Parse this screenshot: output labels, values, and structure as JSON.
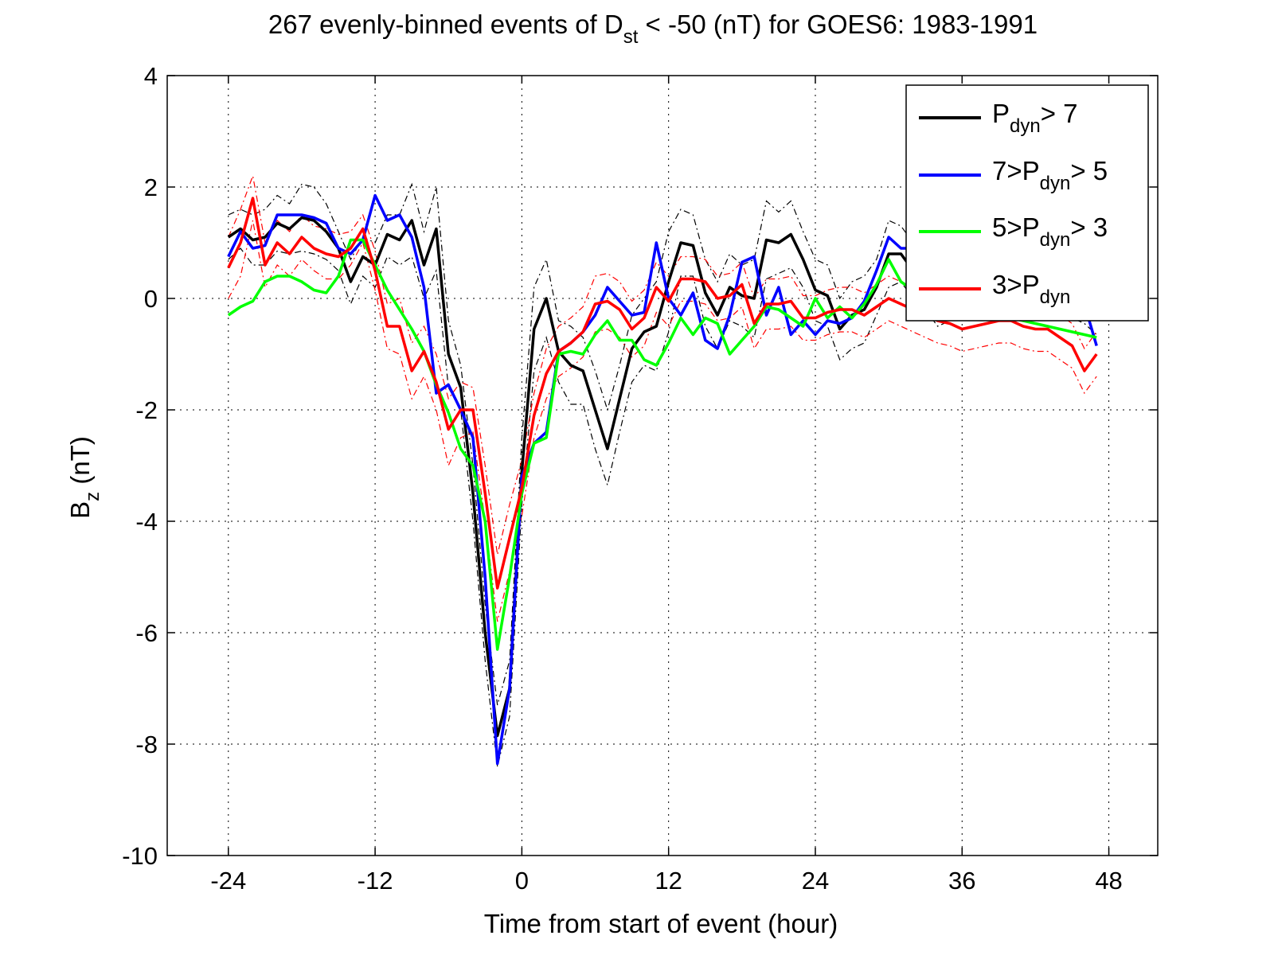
{
  "chart_data": {
    "type": "line",
    "title": {
      "prefix": "267 evenly-binned events of D",
      "sub": "st",
      "suffix": " < -50 (nT) for GOES6: 1983-1991"
    },
    "xlabel": "Time from start of event (hour)",
    "ylabel": {
      "main": "B",
      "sub": "z",
      "unit": " (nT)"
    },
    "xlim": [
      -29,
      52
    ],
    "ylim": [
      -10,
      4
    ],
    "xticks": [
      -24,
      -12,
      0,
      12,
      24,
      36,
      48
    ],
    "yticks": [
      4,
      2,
      0,
      -2,
      -4,
      -6,
      -8,
      -10
    ],
    "grid": true,
    "legend_position": "top-right",
    "x": [
      -24,
      -23,
      -22,
      -21,
      -20,
      -19,
      -18,
      -17,
      -16,
      -15,
      -14,
      -13,
      -12,
      -11,
      -10,
      -9,
      -8,
      -7,
      -6,
      -5,
      -4,
      -3,
      -2,
      -1,
      0,
      1,
      2,
      3,
      4,
      5,
      6,
      7,
      8,
      9,
      10,
      11,
      12,
      13,
      14,
      15,
      16,
      17,
      18,
      19,
      20,
      21,
      22,
      23,
      24,
      25,
      26,
      27,
      28,
      29,
      30,
      31,
      32,
      33,
      34,
      35,
      36,
      37,
      38,
      39,
      40,
      41,
      42,
      43,
      44,
      45,
      46,
      47
    ],
    "series": [
      {
        "legend_html": "P<tspan class=\"sub\" dy=\"10\">dyn</tspan><tspan dy=\"-10\">&gt; 7</tspan>",
        "legend_parts": [
          "P",
          "dyn",
          "> 7"
        ],
        "color": "#000000",
        "values": [
          1.1,
          1.25,
          1.05,
          1.1,
          1.35,
          1.25,
          1.45,
          1.4,
          1.2,
          0.9,
          0.3,
          0.75,
          0.6,
          1.15,
          1.05,
          1.4,
          0.6,
          1.25,
          -1.0,
          -1.6,
          -3.5,
          -6.0,
          -7.85,
          -7.0,
          -3.1,
          -0.55,
          0.0,
          -0.95,
          -1.2,
          -1.3,
          -2.0,
          -2.7,
          -1.8,
          -0.9,
          -0.6,
          -0.5,
          0.3,
          1.0,
          0.95,
          0.1,
          -0.3,
          0.2,
          0.05,
          0.0,
          1.05,
          1.0,
          1.15,
          0.7,
          0.15,
          0.05,
          -0.55,
          -0.3,
          -0.2,
          0.2,
          0.8,
          0.8,
          0.5,
          0.3,
          0.0,
          0.1,
          0.2,
          0.15,
          0.1,
          0.0,
          0.05,
          0.1,
          0.05,
          0.0,
          0.05,
          0.0,
          -0.1,
          -0.3
        ],
        "upper": [
          1.5,
          1.6,
          1.5,
          1.6,
          1.85,
          1.7,
          2.05,
          2.0,
          1.7,
          1.2,
          0.7,
          1.1,
          1.0,
          1.5,
          1.5,
          2.05,
          1.2,
          2.0,
          -0.4,
          -1.2,
          -3.0,
          -5.5,
          -7.3,
          -6.5,
          -2.5,
          0.2,
          0.7,
          -0.4,
          -0.5,
          -0.7,
          -1.3,
          -2.0,
          -1.2,
          -0.3,
          0.0,
          0.3,
          1.2,
          1.6,
          1.5,
          0.7,
          0.3,
          0.8,
          0.6,
          0.7,
          1.75,
          1.55,
          1.75,
          1.2,
          0.7,
          0.6,
          0.0,
          0.3,
          0.4,
          0.7,
          1.4,
          1.3,
          1.0,
          0.8,
          0.5,
          0.6,
          0.6,
          0.5,
          0.45,
          0.35,
          0.4,
          0.45,
          0.4,
          0.35,
          0.4,
          0.35,
          0.25,
          0.05
        ],
        "lower": [
          0.7,
          0.9,
          0.6,
          0.6,
          0.85,
          0.8,
          0.85,
          0.8,
          0.7,
          0.5,
          -0.1,
          0.4,
          0.2,
          0.75,
          0.6,
          0.75,
          0.0,
          0.5,
          -1.6,
          -2.0,
          -4.0,
          -6.5,
          -8.4,
          -7.5,
          -3.7,
          -1.3,
          -0.7,
          -1.5,
          -1.9,
          -1.9,
          -2.7,
          -3.35,
          -2.4,
          -1.5,
          -1.2,
          -1.3,
          -0.6,
          0.4,
          0.4,
          -0.5,
          -0.9,
          -0.4,
          -0.5,
          -0.7,
          0.35,
          0.45,
          0.55,
          0.2,
          -0.4,
          -0.5,
          -1.1,
          -0.9,
          -0.8,
          -0.3,
          0.2,
          0.3,
          0.0,
          -0.2,
          -0.5,
          -0.4,
          -0.2,
          -0.2,
          -0.25,
          -0.35,
          -0.3,
          -0.25,
          -0.3,
          -0.35,
          -0.3,
          -0.35,
          -0.45,
          -0.65
        ]
      },
      {
        "legend_parts": [
          "7>P",
          "dyn",
          "> 5"
        ],
        "color": "#0000ff",
        "values": [
          0.75,
          1.2,
          0.9,
          0.95,
          1.5,
          1.5,
          1.5,
          1.45,
          1.35,
          0.9,
          0.8,
          1.05,
          1.85,
          1.4,
          1.5,
          1.1,
          0.2,
          -1.7,
          -1.55,
          -2.0,
          -2.5,
          -5.0,
          -8.35,
          -7.0,
          -3.2,
          -2.6,
          -2.4,
          -0.95,
          -0.8,
          -0.6,
          -0.3,
          0.2,
          -0.05,
          -0.3,
          -0.25,
          1.0,
          0.0,
          -0.3,
          0.1,
          -0.75,
          -0.9,
          -0.3,
          0.65,
          0.75,
          -0.3,
          0.2,
          -0.65,
          -0.4,
          -0.65,
          -0.4,
          -0.45,
          -0.35,
          -0.05,
          0.5,
          1.1,
          0.9,
          0.9,
          0.5,
          0.6,
          0.2,
          0.3,
          0.3,
          0.15,
          0.1,
          0.2,
          0.15,
          0.1,
          0.05,
          0.0,
          -0.05,
          -0.1,
          -0.85
        ]
      },
      {
        "legend_parts": [
          "5>P",
          "dyn",
          "> 3"
        ],
        "color": "#00ff00",
        "values": [
          -0.3,
          -0.15,
          -0.05,
          0.3,
          0.4,
          0.4,
          0.3,
          0.15,
          0.1,
          0.4,
          1.05,
          1.05,
          0.6,
          0.15,
          -0.2,
          -0.55,
          -0.95,
          -1.55,
          -2.05,
          -2.7,
          -3.0,
          -4.0,
          -6.3,
          -5.0,
          -3.5,
          -2.6,
          -2.5,
          -1.0,
          -0.95,
          -1.0,
          -0.65,
          -0.4,
          -0.75,
          -0.75,
          -1.1,
          -1.2,
          -0.8,
          -0.35,
          -0.65,
          -0.35,
          -0.45,
          -1.0,
          -0.75,
          -0.5,
          -0.15,
          -0.2,
          -0.35,
          -0.5,
          0.0,
          -0.35,
          -0.15,
          -0.35,
          -0.1,
          0.25,
          0.7,
          0.3,
          0.15,
          0.1,
          0.0,
          -0.1,
          -0.2,
          -0.25,
          -0.3,
          -0.3,
          -0.35,
          -0.4,
          -0.45,
          -0.5,
          -0.55,
          -0.6,
          -0.65,
          -0.7
        ]
      },
      {
        "legend_parts": [
          "3>P",
          "dyn",
          ""
        ],
        "color": "#ff0000",
        "values": [
          0.55,
          1.0,
          1.8,
          0.6,
          1.0,
          0.8,
          1.1,
          0.9,
          0.8,
          0.75,
          0.9,
          1.25,
          0.5,
          -0.5,
          -0.5,
          -1.3,
          -0.95,
          -1.5,
          -2.35,
          -2.0,
          -2.0,
          -3.5,
          -5.2,
          -4.3,
          -3.4,
          -2.1,
          -1.35,
          -0.95,
          -0.8,
          -0.6,
          -0.1,
          -0.05,
          -0.2,
          -0.55,
          -0.35,
          0.2,
          -0.05,
          0.35,
          0.35,
          0.3,
          0.0,
          0.05,
          0.25,
          -0.45,
          -0.1,
          -0.1,
          -0.05,
          -0.35,
          -0.35,
          -0.25,
          -0.2,
          -0.2,
          -0.3,
          -0.15,
          0.0,
          -0.1,
          -0.2,
          -0.3,
          -0.4,
          -0.45,
          -0.55,
          -0.5,
          -0.45,
          -0.4,
          -0.4,
          -0.5,
          -0.55,
          -0.55,
          -0.7,
          -0.85,
          -1.3,
          -1.0
        ],
        "upper": [
          1.1,
          1.6,
          2.2,
          1.0,
          1.4,
          1.2,
          1.5,
          1.3,
          1.25,
          1.15,
          1.2,
          1.5,
          0.85,
          -0.1,
          0.0,
          -0.8,
          -0.5,
          -1.0,
          -1.8,
          -1.5,
          -1.6,
          -3.0,
          -4.6,
          -3.7,
          -2.9,
          -1.7,
          -0.9,
          -0.5,
          -0.35,
          -0.15,
          0.4,
          0.45,
          0.3,
          -0.05,
          0.15,
          0.65,
          0.4,
          0.75,
          0.75,
          0.7,
          0.4,
          0.45,
          0.65,
          0.0,
          0.35,
          0.35,
          0.4,
          0.05,
          0.05,
          0.15,
          0.2,
          0.2,
          0.1,
          0.25,
          0.4,
          0.3,
          0.2,
          0.1,
          0.0,
          -0.05,
          -0.15,
          -0.1,
          -0.05,
          0.0,
          0.0,
          -0.1,
          -0.15,
          -0.15,
          -0.3,
          -0.45,
          -0.9,
          -0.6
        ],
        "lower": [
          0.0,
          0.4,
          1.4,
          0.2,
          0.6,
          0.4,
          0.7,
          0.5,
          0.35,
          0.35,
          0.6,
          1.0,
          0.15,
          -0.9,
          -1.0,
          -1.8,
          -1.4,
          -2.0,
          -3.0,
          -2.5,
          -2.4,
          -4.0,
          -5.8,
          -4.9,
          -3.9,
          -2.5,
          -1.8,
          -1.4,
          -1.25,
          -1.05,
          -0.6,
          -0.55,
          -0.7,
          -1.05,
          -0.85,
          -0.25,
          -0.5,
          -0.05,
          -0.05,
          -0.1,
          -0.4,
          -0.35,
          -0.15,
          -0.9,
          -0.55,
          -0.55,
          -0.5,
          -0.75,
          -0.75,
          -0.65,
          -0.6,
          -0.6,
          -0.7,
          -0.55,
          -0.4,
          -0.5,
          -0.6,
          -0.7,
          -0.8,
          -0.85,
          -0.95,
          -0.9,
          -0.85,
          -0.8,
          -0.8,
          -0.9,
          -0.95,
          -0.95,
          -1.1,
          -1.25,
          -1.7,
          -1.4
        ]
      }
    ]
  }
}
